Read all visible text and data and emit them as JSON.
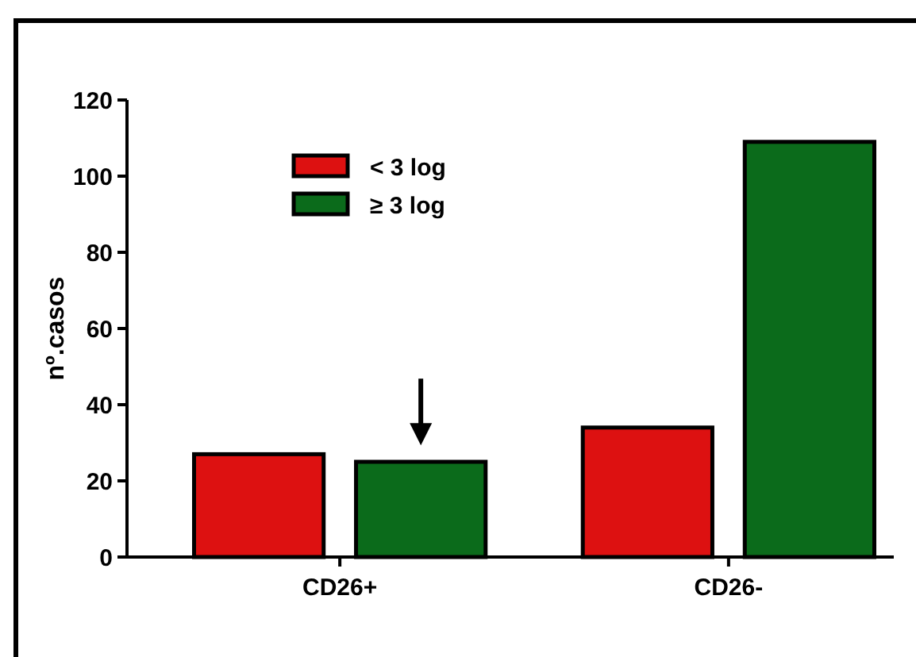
{
  "chart_data": {
    "type": "bar",
    "ylabel": "nº.casos",
    "categories": [
      "CD26+",
      "CD26-"
    ],
    "series": [
      {
        "name": "< 3 log",
        "color": "#dd1111",
        "values": [
          27,
          34
        ]
      },
      {
        "name": "≥ 3 log",
        "color": "#0b6b1b",
        "values": [
          25,
          109
        ]
      }
    ],
    "ylim": [
      0,
      120
    ],
    "yticks": [
      0,
      20,
      40,
      60,
      80,
      100,
      120
    ],
    "grid": false,
    "legend": "top left"
  }
}
